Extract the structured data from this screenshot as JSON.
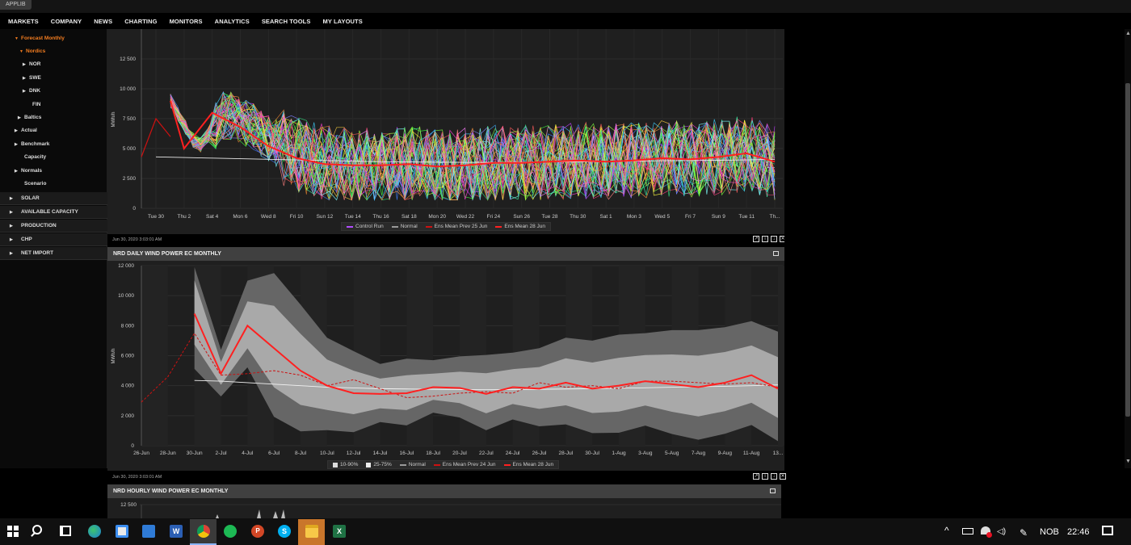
{
  "app_tab": "APPLIB",
  "menu": [
    "MARKETS",
    "COMPANY",
    "NEWS",
    "CHARTING",
    "MONITORS",
    "ANALYTICS",
    "SEARCH TOOLS",
    "MY LAYOUTS"
  ],
  "sidebar": {
    "tree": [
      {
        "label": "Forecast Monthly",
        "arrow": "▼",
        "active": true
      },
      {
        "label": "Nordics",
        "arrow": "▼",
        "active": true
      },
      {
        "label": "NOR",
        "arrow": "▶"
      },
      {
        "label": "SWE",
        "arrow": "▶"
      },
      {
        "label": "DNK",
        "arrow": "▶"
      },
      {
        "label": "FIN",
        "arrow": ""
      },
      {
        "label": "Baltics",
        "arrow": "▶"
      },
      {
        "label": "Actual",
        "arrow": "▶"
      },
      {
        "label": "Benchmark",
        "arrow": "▶"
      },
      {
        "label": "Capacity",
        "arrow": ""
      },
      {
        "label": "Normals",
        "arrow": "▶"
      },
      {
        "label": "Scenario",
        "arrow": ""
      }
    ],
    "sections": [
      "SOLAR",
      "AVAILABLE CAPACITY",
      "PRODUCTION",
      "CHP",
      "NET IMPORT"
    ]
  },
  "panel1": {
    "timestamp": "Jun 30, 2020 3:03:01 AM",
    "legend": [
      {
        "label": "Control Run",
        "color": "#b24cff"
      },
      {
        "label": "Normal",
        "color": "#999999"
      },
      {
        "label": "Ens Mean Prev 25 Jun",
        "color": "#cc1111"
      },
      {
        "label": "Ens Mean 28 Jun",
        "color": "#ff2020"
      }
    ]
  },
  "panel2": {
    "title": "NRD DAILY WIND POWER EC MONTHLY",
    "timestamp": "Jun 30, 2020 3:03:01 AM",
    "legend": [
      {
        "label": "10-90%",
        "color": "#dddddd",
        "kind": "swatch"
      },
      {
        "label": "25-75%",
        "color": "#eeeeee",
        "kind": "swatch"
      },
      {
        "label": "Normal",
        "color": "#999999",
        "kind": "line"
      },
      {
        "label": "Ens Mean Prev 24 Jun",
        "color": "#cc1111",
        "kind": "dash"
      },
      {
        "label": "Ens Mean 28 Jun",
        "color": "#ff2020",
        "kind": "line"
      }
    ]
  },
  "panel3": {
    "title": "NRD HOURLY WIND POWER EC MONTHLY",
    "y_top": "12 500"
  },
  "chart_data": [
    {
      "type": "line",
      "ylabel": "MWh/h",
      "ylim": [
        0,
        15000
      ],
      "y_ticks": [
        "0",
        "2 500",
        "5 000",
        "7 500",
        "10 000",
        "12 500"
      ],
      "x_ticks": [
        "Tue 30",
        "Thu 2",
        "Sat 4",
        "Mon 6",
        "Wed 8",
        "Fri 10",
        "Sun 12",
        "Tue 14",
        "Thu 16",
        "Sat 18",
        "Mon 20",
        "Wed 22",
        "Fri 24",
        "Sun 26",
        "Tue 28",
        "Thu 30",
        "Sat 1",
        "Mon 3",
        "Wed 5",
        "Fri 7",
        "Sun 9",
        "Tue 11",
        "Th..."
      ],
      "series": [
        {
          "name": "Ens Mean 28 Jun",
          "values": [
            9000,
            5000,
            8000,
            6800,
            5200,
            4200,
            3700,
            3600,
            3600,
            3700,
            3500,
            3600,
            3800,
            3800,
            3900,
            4000,
            3900,
            4000,
            4200,
            4100,
            4300,
            4600,
            3900
          ]
        },
        {
          "name": "Normal",
          "values": [
            4300,
            4250,
            4200,
            4150,
            4100,
            4050,
            4000,
            3950,
            3900,
            3880,
            3860,
            3850,
            3850,
            3860,
            3880,
            3900,
            3900,
            3950,
            3980,
            4000,
            4020,
            4050,
            4100
          ]
        }
      ]
    },
    {
      "type": "area",
      "title": "NRD DAILY WIND POWER EC MONTHLY",
      "ylabel": "MWh/h",
      "ylim": [
        0,
        12000
      ],
      "y_ticks": [
        "0",
        "2 000",
        "4 000",
        "6 000",
        "8 000",
        "10 000",
        "12 000"
      ],
      "x_ticks": [
        "26-Jun",
        "28-Jun",
        "30-Jun",
        "2-Jul",
        "4-Jul",
        "6-Jul",
        "8-Jul",
        "10-Jul",
        "12-Jul",
        "14-Jul",
        "16-Jul",
        "18-Jul",
        "20-Jul",
        "22-Jul",
        "24-Jul",
        "26-Jul",
        "28-Jul",
        "30-Jul",
        "1-Aug",
        "3-Aug",
        "5-Aug",
        "7-Aug",
        "9-Aug",
        "11-Aug",
        "13..."
      ],
      "series": [
        {
          "name": "Ens Mean 28 Jun",
          "values": [
            null,
            null,
            8800,
            4800,
            8000,
            6500,
            5000,
            4000,
            3500,
            3450,
            3500,
            3900,
            3850,
            3450,
            3900,
            3800,
            4200,
            3800,
            4000,
            4300,
            4100,
            3900,
            4200,
            4700,
            3800
          ]
        },
        {
          "name": "Ens Mean Prev 24 Jun",
          "values": [
            2900,
            4600,
            7500,
            4700,
            4800,
            5000,
            4700,
            4000,
            4400,
            3800,
            3200,
            3300,
            3500,
            3600,
            3500,
            4200,
            3900,
            4000,
            3800,
            4300,
            4300,
            4200,
            4100,
            4200,
            3900
          ]
        },
        {
          "name": "Normal",
          "values": [
            null,
            null,
            4350,
            4300,
            4200,
            4100,
            4000,
            3900,
            3850,
            3800,
            3780,
            3760,
            3740,
            3730,
            3740,
            3760,
            3780,
            3800,
            3830,
            3860,
            3900,
            3930,
            3960,
            4000,
            4050
          ]
        }
      ]
    }
  ],
  "taskbar": {
    "lang": "NOB",
    "time": "22:46"
  }
}
